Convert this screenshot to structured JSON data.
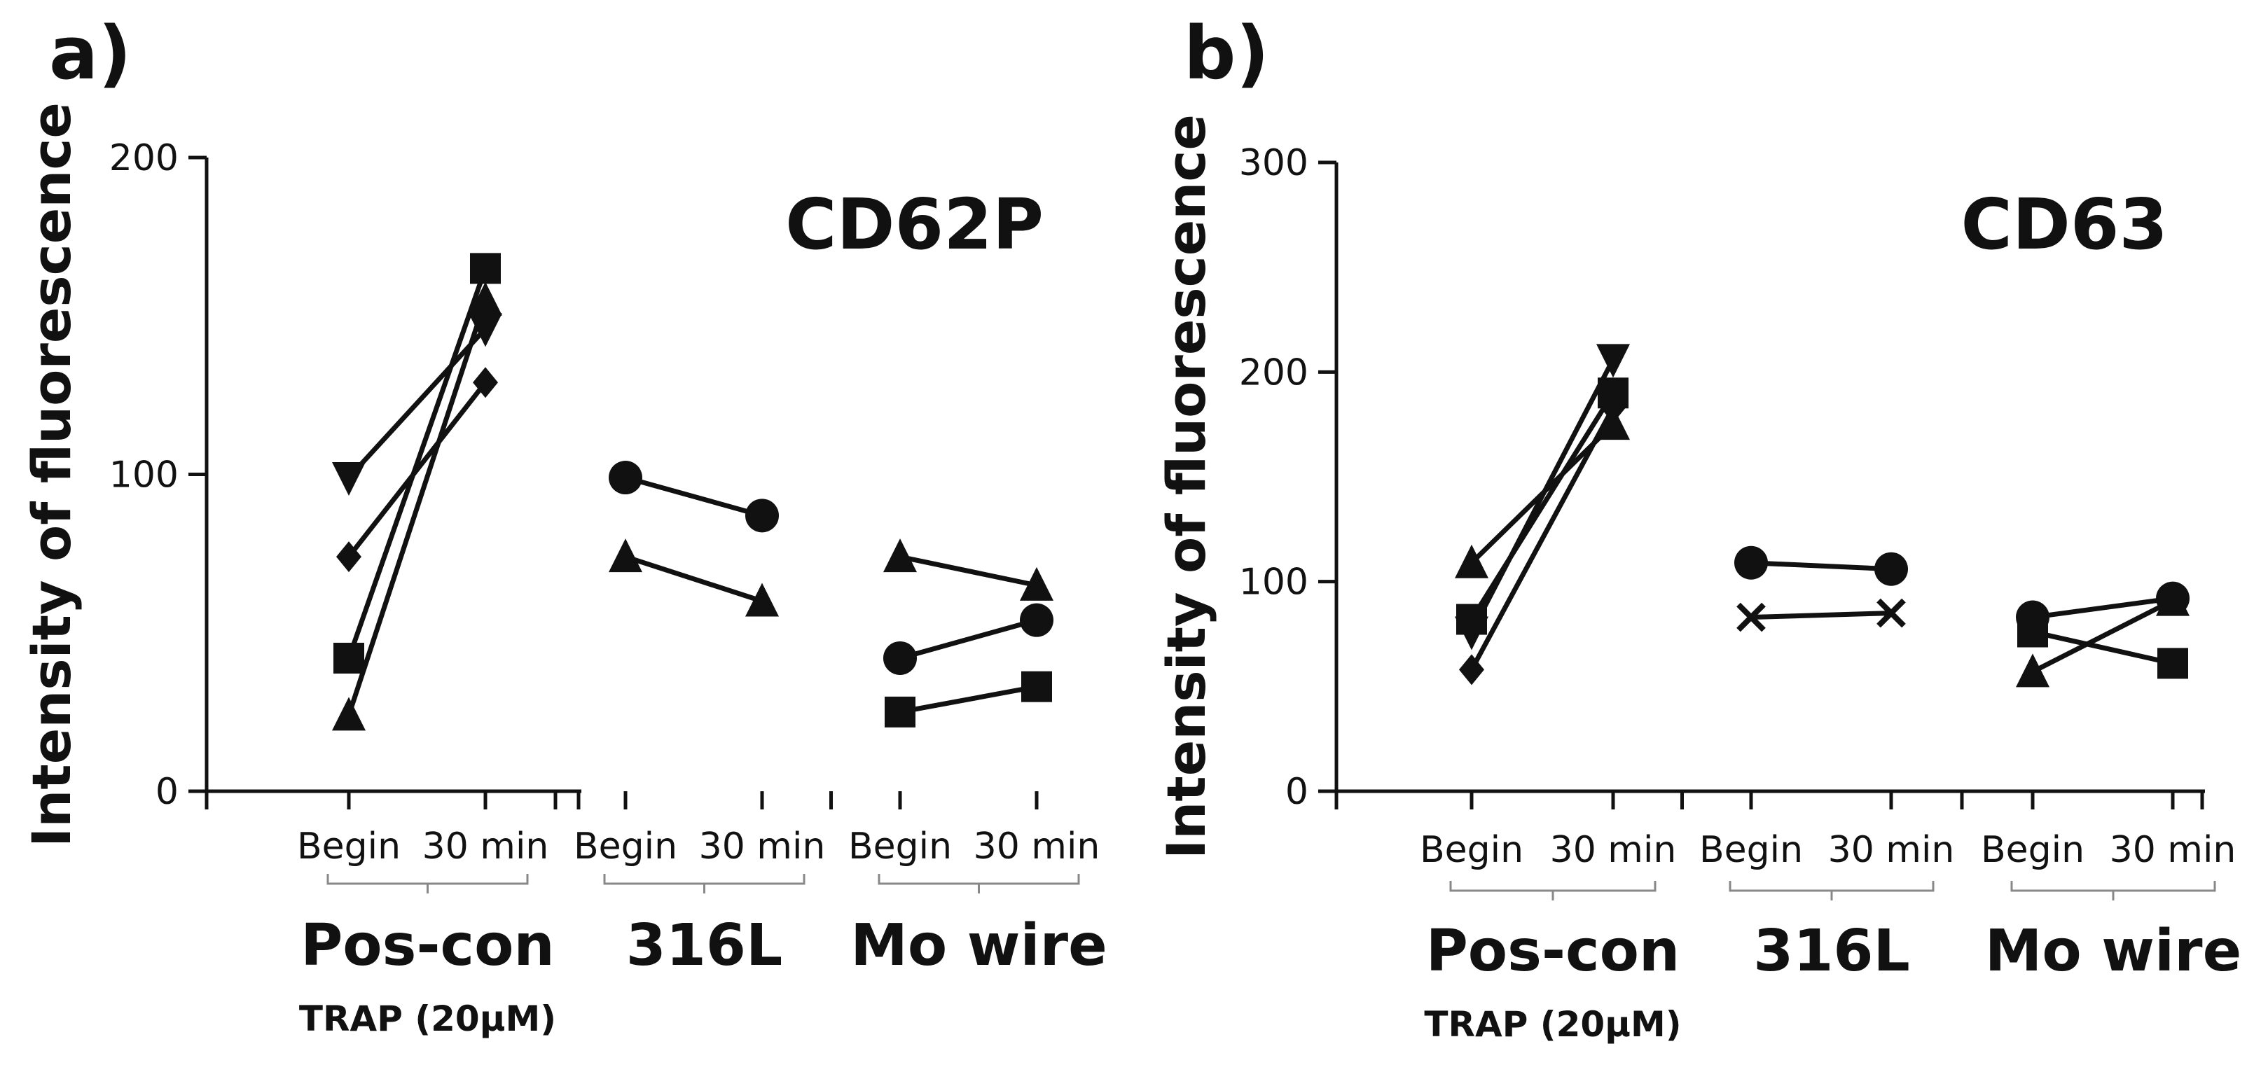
{
  "chart_data": [
    {
      "panel": "a)",
      "type": "line",
      "ylabel": "Intensity of fluorescence",
      "annotation": "CD62P",
      "ylim": [
        0,
        200
      ],
      "yticks": [
        "0",
        "100",
        "200"
      ],
      "sublabels": [
        "Begin",
        "30 min"
      ],
      "groups": [
        {
          "label": "Pos-con",
          "sublabel": "TRAP (20µM)",
          "series": [
            {
              "marker": "square",
              "values": [
                42,
                165
              ]
            },
            {
              "marker": "triangle-up",
              "values": [
                24,
                155
              ]
            },
            {
              "marker": "triangle-down",
              "values": [
                99,
                146
              ]
            },
            {
              "marker": "diamond",
              "values": [
                74,
                129
              ]
            }
          ]
        },
        {
          "label": "316L",
          "sublabel": "",
          "series": [
            {
              "marker": "circle",
              "values": [
                99,
                87
              ]
            },
            {
              "marker": "triangle-up",
              "values": [
                74,
                60
              ]
            }
          ]
        },
        {
          "label": "Mo wire",
          "sublabel": "",
          "series": [
            {
              "marker": "triangle-up",
              "values": [
                74,
                65
              ]
            },
            {
              "marker": "circle",
              "values": [
                42,
                54
              ]
            },
            {
              "marker": "square",
              "values": [
                25,
                33
              ]
            }
          ]
        }
      ]
    },
    {
      "panel": "b)",
      "type": "line",
      "ylabel": "Intensity of fluorescence",
      "annotation": "CD63",
      "ylim": [
        0,
        300
      ],
      "yticks": [
        "0",
        "100",
        "200",
        "300"
      ],
      "sublabels": [
        "Begin",
        "30 min"
      ],
      "groups": [
        {
          "label": "Pos-con",
          "sublabel": "TRAP (20µM)",
          "series": [
            {
              "marker": "triangle-up",
              "values": [
                109,
                175
              ]
            },
            {
              "marker": "square",
              "values": [
                82,
                190
              ]
            },
            {
              "marker": "triangle-down",
              "values": [
                76,
                206
              ]
            },
            {
              "marker": "diamond",
              "values": [
                58,
                183
              ]
            }
          ]
        },
        {
          "label": "316L",
          "sublabel": "",
          "series": [
            {
              "marker": "circle",
              "values": [
                109,
                106
              ]
            },
            {
              "marker": "cross",
              "values": [
                83,
                85
              ]
            }
          ]
        },
        {
          "label": "Mo wire",
          "sublabel": "",
          "series": [
            {
              "marker": "circle",
              "values": [
                83,
                92
              ]
            },
            {
              "marker": "square",
              "values": [
                76,
                61
              ]
            },
            {
              "marker": "triangle-up",
              "values": [
                57,
                91
              ]
            }
          ]
        }
      ]
    }
  ]
}
